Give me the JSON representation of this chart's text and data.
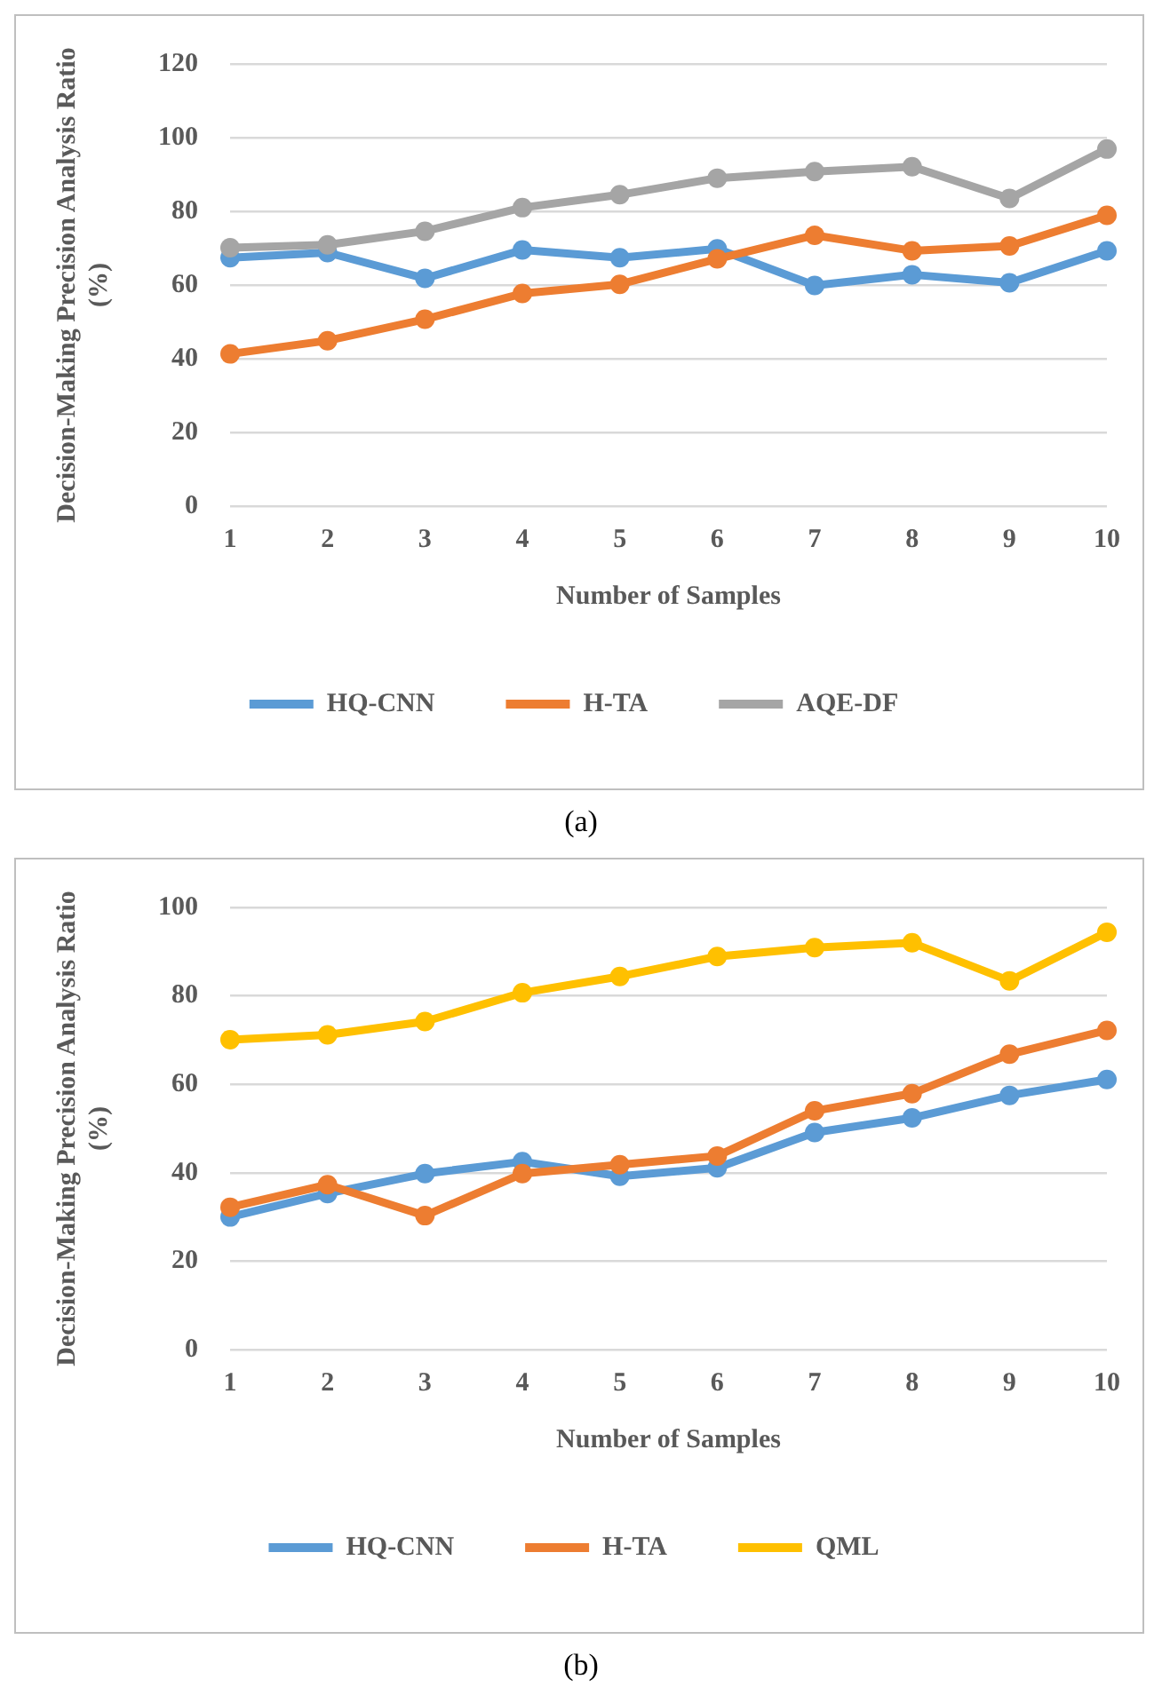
{
  "chart_data": [
    {
      "type": "line",
      "xlabel": "Number of Samples",
      "ylabel": "Decision-Making Precision Analysis Ratio (%)",
      "categories": [
        "1",
        "2",
        "3",
        "4",
        "5",
        "6",
        "7",
        "8",
        "9",
        "10"
      ],
      "ylim": [
        0,
        120
      ],
      "yticks": [
        0,
        20,
        40,
        60,
        80,
        100,
        120
      ],
      "grid": "y",
      "legend": "bottom",
      "marker": "circle",
      "line_style": "solid",
      "annotations": [
        "(a)"
      ],
      "series": [
        {
          "name": "HQ-CNN",
          "color": "#5b9bd5",
          "values": [
            67.4,
            68.8,
            61.8,
            69.5,
            67.4,
            69.8,
            59.9,
            62.8,
            60.6,
            69.3
          ]
        },
        {
          "name": "H-TA",
          "color": "#ed7d31",
          "values": [
            41.3,
            44.9,
            50.7,
            57.7,
            60.2,
            67.1,
            73.5,
            69.3,
            70.6,
            78.9
          ]
        },
        {
          "name": "AQE-DF",
          "color": "#a5a5a5",
          "values": [
            70.1,
            70.9,
            74.6,
            81,
            84.5,
            89,
            90.8,
            92.1,
            83.5,
            96.9
          ]
        }
      ]
    },
    {
      "type": "line",
      "xlabel": "Number of Samples",
      "ylabel": "Decision-Making Precision Analysis Ratio (%)",
      "categories": [
        "1",
        "2",
        "3",
        "4",
        "5",
        "6",
        "7",
        "8",
        "9",
        "10"
      ],
      "ylim": [
        0,
        100
      ],
      "yticks": [
        0,
        20,
        40,
        60,
        80,
        100
      ],
      "grid": "y",
      "legend": "bottom",
      "marker": "circle",
      "line_style": "solid",
      "annotations": [
        "(b)"
      ],
      "series": [
        {
          "name": "HQ-CNN",
          "color": "#5b9bd5",
          "values": [
            30,
            35.3,
            39.8,
            42.5,
            39.2,
            41.1,
            49.1,
            52.4,
            57.5,
            61.1
          ]
        },
        {
          "name": "H-TA",
          "color": "#ed7d31",
          "values": [
            32.2,
            37.3,
            30.3,
            39.8,
            41.8,
            43.8,
            54,
            57.9,
            66.8,
            72.2
          ]
        },
        {
          "name": "QML",
          "color": "#ffc000",
          "values": [
            70.1,
            71.2,
            74.2,
            80.7,
            84.4,
            88.9,
            90.9,
            92,
            83.4,
            94.4
          ]
        }
      ]
    }
  ]
}
